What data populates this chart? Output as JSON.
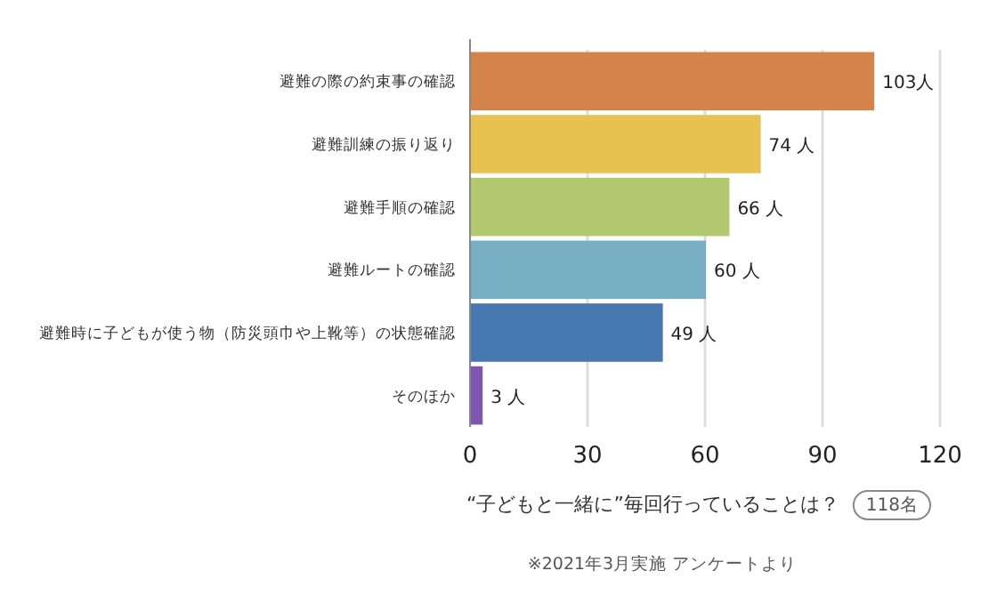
{
  "chart_data": {
    "type": "bar",
    "orientation": "horizontal",
    "categories": [
      "避難の際の約束事の確認",
      "避難訓練の振り返り",
      "避難手順の確認",
      "避難ルートの確認",
      "避難時に子どもが使う物（防災頭巾や上靴等）の状態確認",
      "そのほか"
    ],
    "values": [
      103,
      74,
      66,
      60,
      49,
      3
    ],
    "colors": [
      "#d4844a",
      "#e8c250",
      "#b2c86e",
      "#78afc4",
      "#4878b0",
      "#7e58b0"
    ],
    "value_labels": [
      "103人",
      "74 人",
      "66 人",
      "60 人",
      "49 人",
      "3 人"
    ],
    "xlim": [
      0,
      120
    ],
    "xticks": [
      0,
      30,
      60,
      90,
      120
    ],
    "grid": "x",
    "xlabel": "“子どもと一緒に”毎回行っていることは？",
    "annotations": [
      "118名",
      "※2021年3月実施 アンケートより"
    ]
  }
}
